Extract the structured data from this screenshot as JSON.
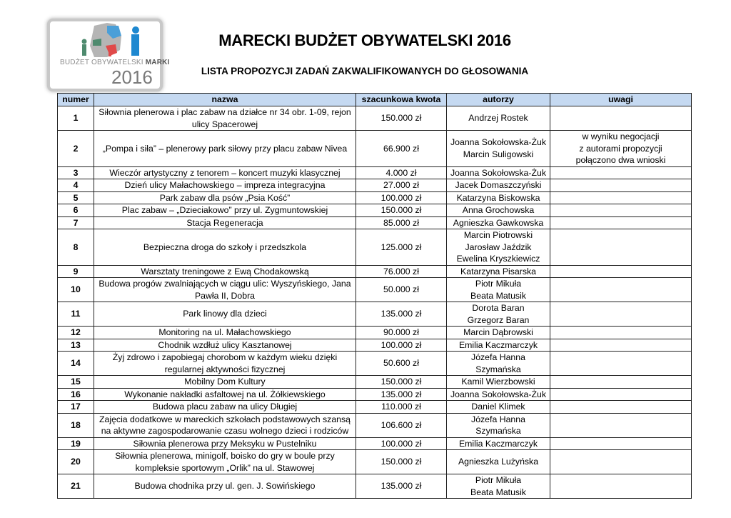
{
  "logo": {
    "text": "BUDŻET OBYWATELSKI",
    "text_bold": "MARKI",
    "year": "2016"
  },
  "title": "MARECKI BUDŻET OBYWATELSKI 2016",
  "subtitle": "LISTA PROPOZYCJI ZADAŃ ZAKWALIFIKOWANYCH DO GŁOSOWANIA",
  "columns": [
    "numer",
    "nazwa",
    "szacunkowa kwota",
    "autorzy",
    "uwagi"
  ],
  "header_color": "#c5d9f1",
  "rows": [
    {
      "numer": "1",
      "nazwa": [
        "Siłownia plenerowa i plac zabaw na działce nr 34 obr. 1-09, rejon",
        "ulicy Spacerowej"
      ],
      "kwota": "150.000 zł",
      "autorzy": [
        "Andrzej Rostek"
      ],
      "uwagi": []
    },
    {
      "numer": "2",
      "nazwa": [
        "„Pompa i siła” – plenerowy park siłowy przy placu zabaw Nivea"
      ],
      "kwota": "66.900 zł",
      "autorzy": [
        "Joanna Sokołowska-Żuk",
        "Marcin Suligowski"
      ],
      "uwagi": [
        "w wyniku negocjacji",
        "z autorami propozycji",
        "połączono dwa wnioski"
      ]
    },
    {
      "numer": "3",
      "nazwa": [
        "Wieczór artystyczny z tenorem – koncert muzyki klasycznej"
      ],
      "kwota": "4.000 zł",
      "autorzy": [
        "Joanna Sokołowska-Żuk"
      ],
      "uwagi": []
    },
    {
      "numer": "4",
      "nazwa": [
        "Dzień ulicy Małachowskiego – impreza integracyjna"
      ],
      "kwota": "27.000 zł",
      "autorzy": [
        "Jacek Domaszczyński"
      ],
      "uwagi": []
    },
    {
      "numer": "5",
      "nazwa": [
        "Park zabaw dla psów „Psia Kość”"
      ],
      "kwota": "100.000 zł",
      "autorzy": [
        "Katarzyna Biskowska"
      ],
      "uwagi": []
    },
    {
      "numer": "6",
      "nazwa": [
        "Plac zabaw – „Dzieciakowo” przy ul. Zygmuntowskiej"
      ],
      "kwota": "150.000 zł",
      "autorzy": [
        "Anna Grochowska"
      ],
      "uwagi": []
    },
    {
      "numer": "7",
      "nazwa": [
        "Stacja Regeneracja"
      ],
      "kwota": "85.000 zł",
      "autorzy": [
        "Agnieszka Gawkowska"
      ],
      "uwagi": []
    },
    {
      "numer": "8",
      "nazwa": [
        "Bezpieczna droga do szkoły i przedszkola"
      ],
      "kwota": "125.000 zł",
      "autorzy": [
        "Marcin Piotrowski",
        "Jarosław Jaździk",
        "Ewelina Kryszkiewicz"
      ],
      "uwagi": []
    },
    {
      "numer": "9",
      "nazwa": [
        "Warsztaty treningowe z Ewą Chodakowską"
      ],
      "kwota": "76.000 zł",
      "autorzy": [
        "Katarzyna Pisarska"
      ],
      "uwagi": []
    },
    {
      "numer": "10",
      "nazwa": [
        "Budowa progów zwalniających w ciągu ulic: Wyszyńskiego, Jana",
        "Pawła II, Dobra"
      ],
      "kwota": "50.000 zł",
      "autorzy": [
        "Piotr Mikuła",
        "Beata Matusik"
      ],
      "uwagi": []
    },
    {
      "numer": "11",
      "nazwa": [
        "Park linowy dla dzieci"
      ],
      "kwota": "135.000 zł",
      "autorzy": [
        "Dorota Baran",
        "Grzegorz Baran"
      ],
      "uwagi": []
    },
    {
      "numer": "12",
      "nazwa": [
        "Monitoring na ul. Małachowskiego"
      ],
      "kwota": "90.000 zł",
      "autorzy": [
        "Marcin Dąbrowski"
      ],
      "uwagi": []
    },
    {
      "numer": "13",
      "nazwa": [
        "Chodnik wzdłuż ulicy Kasztanowej"
      ],
      "kwota": "100.000 zł",
      "autorzy": [
        "Emilia Kaczmarczyk"
      ],
      "uwagi": []
    },
    {
      "numer": "14",
      "nazwa": [
        "Żyj zdrowo i zapobiegaj chorobom w każdym wieku dzięki",
        "regularnej aktywności fizycznej"
      ],
      "kwota": "50.600 zł",
      "autorzy": [
        "Józefa Hanna",
        "Szymańska"
      ],
      "uwagi": []
    },
    {
      "numer": "15",
      "nazwa": [
        "Mobilny Dom Kultury"
      ],
      "kwota": "150.000 zł",
      "autorzy": [
        "Kamil Wierzbowski"
      ],
      "uwagi": []
    },
    {
      "numer": "16",
      "nazwa": [
        "Wykonanie nakładki asfaltowej na ul. Żółkiewskiego"
      ],
      "kwota": "135.000 zł",
      "autorzy": [
        "Joanna Sokołowska-Żuk"
      ],
      "uwagi": []
    },
    {
      "numer": "17",
      "nazwa": [
        "Budowa placu zabaw na ulicy Długiej"
      ],
      "kwota": "110.000 zł",
      "autorzy": [
        "Daniel Klimek"
      ],
      "uwagi": []
    },
    {
      "numer": "18",
      "nazwa": [
        "Zajęcia dodatkowe w mareckich szkołach podstawowych szansą",
        "na aktywne zagospodarowanie czasu wolnego dzieci i rodziców"
      ],
      "kwota": "106.600 zł",
      "autorzy": [
        "Józefa Hanna",
        "Szymańska"
      ],
      "uwagi": []
    },
    {
      "numer": "19",
      "nazwa": [
        "Siłownia plenerowa przy Meksyku w Pustelniku"
      ],
      "kwota": "100.000 zł",
      "autorzy": [
        "Emilia Kaczmarczyk"
      ],
      "uwagi": []
    },
    {
      "numer": "20",
      "nazwa": [
        "Siłownia plenerowa, minigolf, boisko do gry w boule przy",
        "kompleksie sportowym „Orlik” na ul. Stawowej"
      ],
      "kwota": "150.000 zł",
      "autorzy": [
        "Agnieszka Lużyńska"
      ],
      "uwagi": []
    },
    {
      "numer": "21",
      "nazwa": [
        "Budowa chodnika przy ul. gen. J. Sowińskiego"
      ],
      "kwota": "135.000 zł",
      "autorzy": [
        "Piotr Mikuła",
        "Beata Matusik"
      ],
      "uwagi": []
    }
  ]
}
